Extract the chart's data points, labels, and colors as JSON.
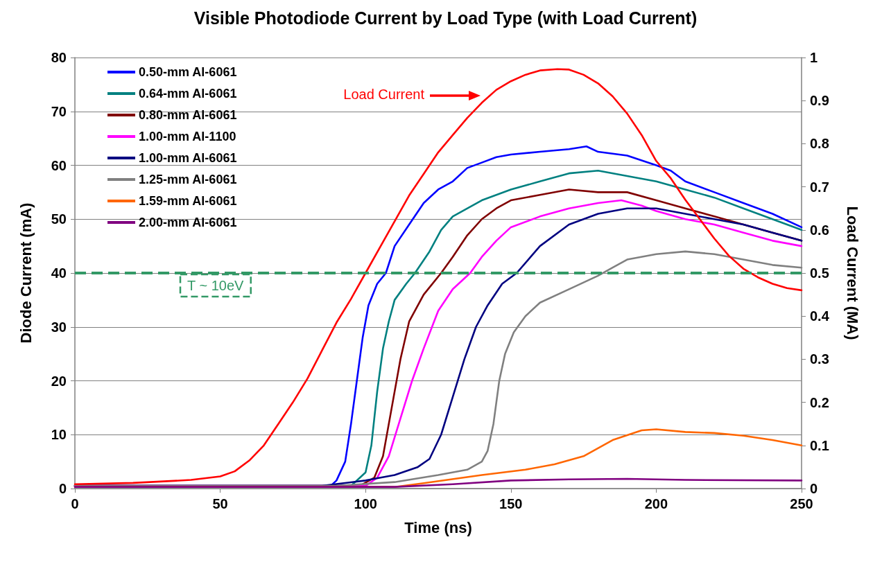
{
  "chart_data": {
    "type": "line",
    "title": "Visible Photodiode Current by Load Type (with Load Current)",
    "xlabel": "Time (ns)",
    "ylabel": "Diode Current (mA)",
    "y2label": "Load Current (MA)",
    "xlim": [
      0,
      250
    ],
    "xticks": [
      0,
      50,
      100,
      150,
      200,
      250
    ],
    "ylim": [
      0,
      80
    ],
    "yticks": [
      0,
      10,
      20,
      30,
      40,
      50,
      60,
      70,
      80
    ],
    "y2lim": [
      0,
      1
    ],
    "y2ticks": [
      0,
      0.1,
      0.2,
      0.3,
      0.4,
      0.5,
      0.6,
      0.7,
      0.8,
      0.9,
      1
    ],
    "grid": "y",
    "legend": "top left",
    "marker": "none",
    "line_style": "solid",
    "ref_lines": [
      {
        "axis": "y",
        "value": 40,
        "label": "T ~ 10eV",
        "color": "#339966",
        "line_style": "dashed"
      }
    ],
    "annotations": [
      "Load Current"
    ],
    "series": [
      {
        "name": "0.50-mm Al-6061",
        "color": "#0000ff",
        "x": [
          0,
          88,
          90,
          93,
          95,
          97,
          99,
          101,
          104,
          107,
          110,
          115,
          120,
          125,
          130,
          135,
          140,
          145,
          150,
          160,
          170,
          176,
          180,
          190,
          200,
          205,
          210,
          220,
          230,
          240,
          250
        ],
        "values": [
          0.5,
          0.5,
          1.5,
          5,
          12,
          20,
          28,
          34,
          38,
          40,
          45,
          49,
          53,
          55.5,
          57,
          59.5,
          60.5,
          61.5,
          62,
          62.5,
          63,
          63.5,
          62.5,
          61.8,
          60,
          59,
          57,
          55,
          53,
          51,
          48.5
        ]
      },
      {
        "name": "0.64-mm Al-6061",
        "color": "#008080",
        "x": [
          0,
          95,
          100,
          102,
          104,
          106,
          108,
          110,
          114,
          117,
          122,
          126,
          130,
          140,
          150,
          160,
          170,
          180,
          190,
          200,
          210,
          220,
          230,
          240,
          250
        ],
        "values": [
          0.5,
          0.5,
          3,
          8,
          18,
          26,
          31,
          35,
          38,
          40,
          44,
          48,
          50.5,
          53.5,
          55.5,
          57,
          58.5,
          59,
          58,
          57,
          55.5,
          54,
          52,
          50,
          48
        ]
      },
      {
        "name": "0.80-mm Al-6061",
        "color": "#800000",
        "x": [
          0,
          98,
          103,
          106,
          109,
          112,
          115,
          120,
          126,
          130,
          135,
          140,
          145,
          150,
          160,
          170,
          180,
          190,
          200,
          210,
          220,
          230,
          240,
          250
        ],
        "values": [
          0.5,
          0.5,
          2,
          6,
          15,
          24,
          31,
          36,
          40,
          43,
          47,
          50,
          52,
          53.5,
          54.5,
          55.5,
          55,
          55,
          53.5,
          52,
          50.5,
          49,
          47.5,
          46
        ]
      },
      {
        "name": "1.00-mm Al-1100",
        "color": "#ff00ff",
        "x": [
          0,
          100,
          104,
          108,
          112,
          116,
          120,
          125,
          130,
          136,
          140,
          145,
          150,
          160,
          170,
          180,
          188,
          195,
          200,
          210,
          220,
          230,
          240,
          250
        ],
        "values": [
          0.5,
          0.5,
          2,
          6,
          13,
          20,
          26,
          33,
          37,
          40,
          43,
          46,
          48.5,
          50.5,
          52,
          53,
          53.5,
          52.5,
          51.5,
          50,
          49,
          47.5,
          46,
          45
        ]
      },
      {
        "name": "1.00-mm Al-6061",
        "color": "#000080",
        "x": [
          0,
          85,
          100,
          110,
          118,
          122,
          126,
          130,
          134,
          138,
          142,
          147,
          152,
          160,
          170,
          180,
          190,
          200,
          210,
          220,
          230,
          240,
          250
        ],
        "values": [
          0.5,
          0.5,
          1.5,
          2.5,
          4,
          5.5,
          10,
          17,
          24,
          30,
          34,
          38,
          40,
          45,
          49,
          51,
          52,
          52,
          51,
          50,
          49,
          47.5,
          46
        ]
      },
      {
        "name": "1.25-mm Al-6061",
        "color": "#808080",
        "x": [
          0,
          90,
          110,
          125,
          135,
          140,
          142,
          144,
          146,
          148,
          151,
          155,
          160,
          170,
          180,
          185,
          190,
          200,
          210,
          220,
          230,
          240,
          250
        ],
        "values": [
          0.5,
          0.5,
          1.2,
          2.5,
          3.5,
          5,
          7,
          12,
          20,
          25,
          29,
          32,
          34.5,
          37,
          39.5,
          41,
          42.5,
          43.5,
          44,
          43.5,
          42.5,
          41.5,
          41
        ]
      },
      {
        "name": "1.59-mm Al-6061",
        "color": "#ff6600",
        "x": [
          0,
          110,
          120,
          140,
          155,
          165,
          175,
          185,
          195,
          200,
          210,
          220,
          230,
          240,
          250
        ],
        "values": [
          0.3,
          0.3,
          1,
          2.5,
          3.5,
          4.5,
          6,
          9,
          10.8,
          11,
          10.5,
          10.3,
          9.8,
          9,
          8
        ]
      },
      {
        "name": "2.00-mm Al-6061",
        "color": "#800080",
        "x": [
          0,
          110,
          130,
          150,
          170,
          190,
          210,
          250
        ],
        "values": [
          0.3,
          0.3,
          0.8,
          1.5,
          1.7,
          1.8,
          1.6,
          1.5
        ]
      },
      {
        "color": "#ff0000",
        "axis": "y2",
        "x": [
          0,
          20,
          40,
          50,
          55,
          60,
          65,
          70,
          75,
          80,
          85,
          90,
          95,
          100,
          105,
          110,
          115,
          120,
          125,
          130,
          135,
          140,
          145,
          150,
          155,
          160,
          166,
          170,
          175,
          180,
          185,
          190,
          195,
          200,
          205,
          210,
          215,
          220,
          225,
          230,
          235,
          240,
          245,
          250
        ],
        "values": [
          0.01,
          0.013,
          0.02,
          0.028,
          0.04,
          0.065,
          0.1,
          0.15,
          0.2,
          0.255,
          0.32,
          0.385,
          0.44,
          0.5,
          0.56,
          0.62,
          0.68,
          0.73,
          0.78,
          0.82,
          0.86,
          0.895,
          0.925,
          0.945,
          0.96,
          0.97,
          0.973,
          0.972,
          0.96,
          0.94,
          0.91,
          0.87,
          0.82,
          0.76,
          0.72,
          0.67,
          0.625,
          0.58,
          0.54,
          0.51,
          0.49,
          0.475,
          0.465,
          0.46
        ]
      }
    ]
  }
}
